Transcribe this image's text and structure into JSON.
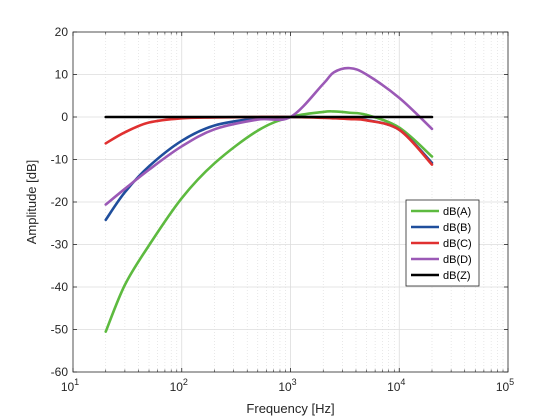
{
  "chart_data": {
    "type": "line",
    "title": "",
    "xlabel": "Frequency [Hz]",
    "ylabel": "Amplitude [dB]",
    "x_scale": "log",
    "xlim": [
      10,
      100000
    ],
    "ylim": [
      -60,
      20
    ],
    "yticks": [
      20,
      10,
      0,
      -10,
      -20,
      -30,
      -40,
      -50,
      -60
    ],
    "xticks": [
      {
        "base": "10",
        "exp": "1"
      },
      {
        "base": "10",
        "exp": "2"
      },
      {
        "base": "10",
        "exp": "3"
      },
      {
        "base": "10",
        "exp": "4"
      },
      {
        "base": "10",
        "exp": "5"
      }
    ],
    "grid": "on (major and minor)",
    "legend_position": "lower-right",
    "x": [
      20,
      30,
      50,
      100,
      200,
      500,
      1000,
      2000,
      2500,
      3500,
      5000,
      10000,
      20000
    ],
    "series": [
      {
        "name": "dB(A)",
        "color": "#5dba3f",
        "values": [
          -50.5,
          -39.5,
          -30.2,
          -19.1,
          -10.9,
          -3.2,
          0,
          1.2,
          1.3,
          1.0,
          0.5,
          -2.5,
          -9.3
        ]
      },
      {
        "name": "dB(B)",
        "color": "#1f4e9c",
        "values": [
          -24.2,
          -17.7,
          -11.6,
          -5.6,
          -2.0,
          -0.3,
          0,
          -0.1,
          -0.2,
          -0.4,
          -0.7,
          -3.0,
          -10.8
        ]
      },
      {
        "name": "dB(C)",
        "color": "#e03030",
        "values": [
          -6.2,
          -3.6,
          -1.3,
          -0.3,
          -0.1,
          0,
          0,
          -0.2,
          -0.3,
          -0.5,
          -0.8,
          -3.0,
          -11.2
        ]
      },
      {
        "name": "dB(D)",
        "color": "#9b59b6",
        "values": [
          -20.6,
          -16.9,
          -12.4,
          -6.9,
          -2.9,
          -0.6,
          0,
          7.8,
          10.5,
          11.5,
          10.0,
          4.5,
          -2.8
        ]
      },
      {
        "name": "dB(Z)",
        "color": "#000000",
        "values": [
          0,
          0,
          0,
          0,
          0,
          0,
          0,
          0,
          0,
          0,
          0,
          0,
          0
        ]
      }
    ]
  }
}
